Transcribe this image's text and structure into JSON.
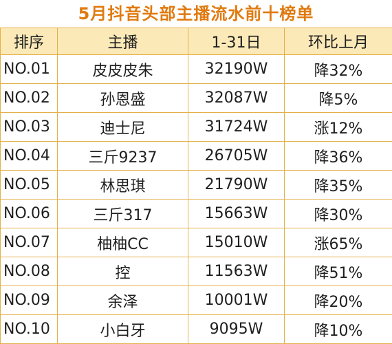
{
  "title": "5月抖音头部主播流水前十榜单",
  "headers": [
    "排序",
    "主播",
    "1-31日",
    "环比上月"
  ],
  "rows": [
    [
      "NO.01",
      "皮皮皮朱",
      "32190W",
      "降32%"
    ],
    [
      "NO.02",
      "孙恩盛",
      "32087W",
      "降5%"
    ],
    [
      "NO.03",
      "迪士尼",
      "31724W",
      "涨12%"
    ],
    [
      "NO.04",
      "三斤9237",
      "26705W",
      "降36%"
    ],
    [
      "NO.05",
      "林思琪",
      "21790W",
      "降35%"
    ],
    [
      "NO.06",
      "三斤317",
      "15663W",
      "降30%"
    ],
    [
      "NO.07",
      "柚柚CC",
      "15010W",
      "涨65%"
    ],
    [
      "NO.08",
      "控",
      "11563W",
      "降51%"
    ],
    [
      "NO.09",
      "余泽",
      "10001W",
      "降20%"
    ],
    [
      "NO.10",
      "小白牙",
      "9095W",
      "降10%"
    ]
  ],
  "colors": {
    "title": "#e07a10",
    "header_bg": "#fbe9b8",
    "border": "#e3b04a",
    "text": "#1f1f1f"
  }
}
